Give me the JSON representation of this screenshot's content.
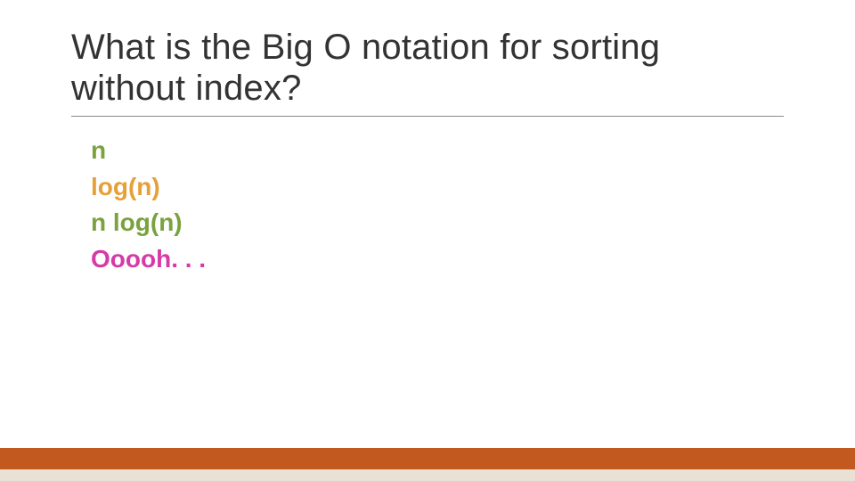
{
  "title": "What is the Big O notation for sorting without index?",
  "title_color": "#333333",
  "title_fontsize": 40,
  "title_weight": 300,
  "title_underline_color": "#888888",
  "answers": [
    {
      "text": "n",
      "color": "#7aa23f"
    },
    {
      "text": "log(n)",
      "color": "#e6a03a"
    },
    {
      "text": "n log(n)",
      "color": "#7aa23f"
    },
    {
      "text": "Ooooh. . .",
      "color": "#d63aa6"
    }
  ],
  "answer_fontsize": 28,
  "answer_weight": 600,
  "background_color": "#ffffff",
  "footer": {
    "top_color": "#c25a1f",
    "top_height": 24,
    "bottom_color": "#e9e1d4",
    "bottom_height": 13
  },
  "slide_width": 960,
  "slide_height": 540
}
